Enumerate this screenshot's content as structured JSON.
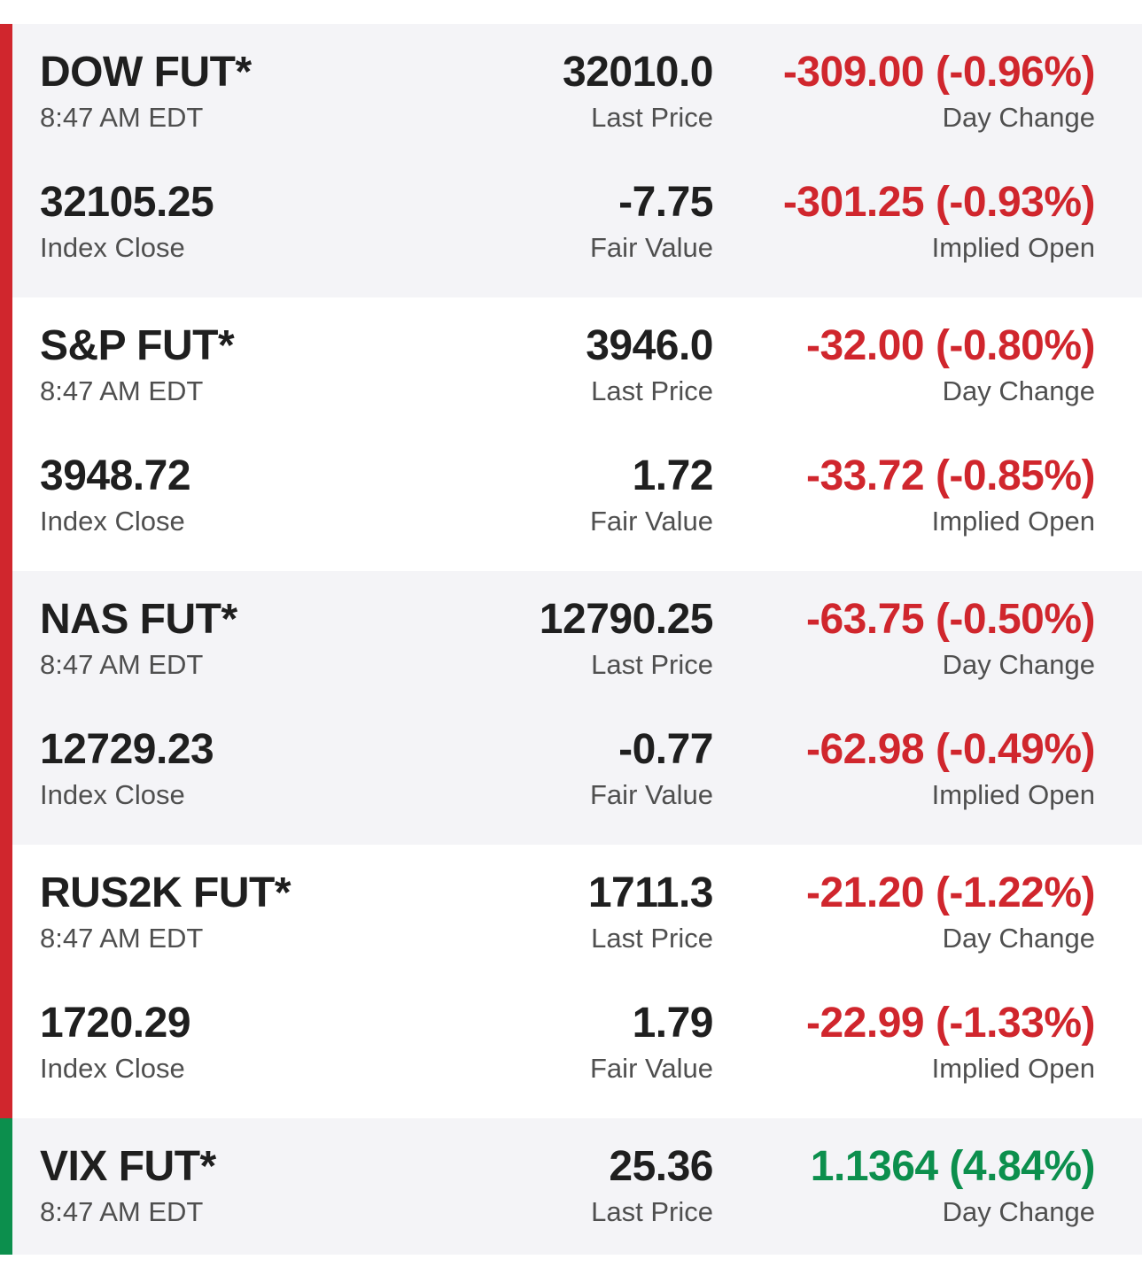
{
  "colors": {
    "negative": "#d0262d",
    "positive": "#0c8f4d",
    "alt_row_background": "#f4f4f7"
  },
  "labels": {
    "last_price": "Last Price",
    "day_change": "Day Change",
    "index_close": "Index Close",
    "fair_value": "Fair Value",
    "implied_open": "Implied Open"
  },
  "futures": [
    {
      "name": "DOW FUT*",
      "time": "8:47 AM EDT",
      "last_price": "32010.0",
      "day_change": "-309.00 (-0.96%)",
      "direction": "down",
      "index_close": "32105.25",
      "fair_value": "-7.75",
      "implied_open": "-301.25 (-0.93%)"
    },
    {
      "name": "S&P FUT*",
      "time": "8:47 AM EDT",
      "last_price": "3946.0",
      "day_change": "-32.00 (-0.80%)",
      "direction": "down",
      "index_close": "3948.72",
      "fair_value": "1.72",
      "implied_open": "-33.72 (-0.85%)"
    },
    {
      "name": "NAS FUT*",
      "time": "8:47 AM EDT",
      "last_price": "12790.25",
      "day_change": "-63.75 (-0.50%)",
      "direction": "down",
      "index_close": "12729.23",
      "fair_value": "-0.77",
      "implied_open": "-62.98 (-0.49%)"
    },
    {
      "name": "RUS2K FUT*",
      "time": "8:47 AM EDT",
      "last_price": "1711.3",
      "day_change": "-21.20 (-1.22%)",
      "direction": "down",
      "index_close": "1720.29",
      "fair_value": "1.79",
      "implied_open": "-22.99 (-1.33%)"
    },
    {
      "name": "VIX FUT*",
      "time": "8:47 AM EDT",
      "last_price": "25.36",
      "day_change": "1.1364 (4.84%)",
      "direction": "up"
    }
  ]
}
